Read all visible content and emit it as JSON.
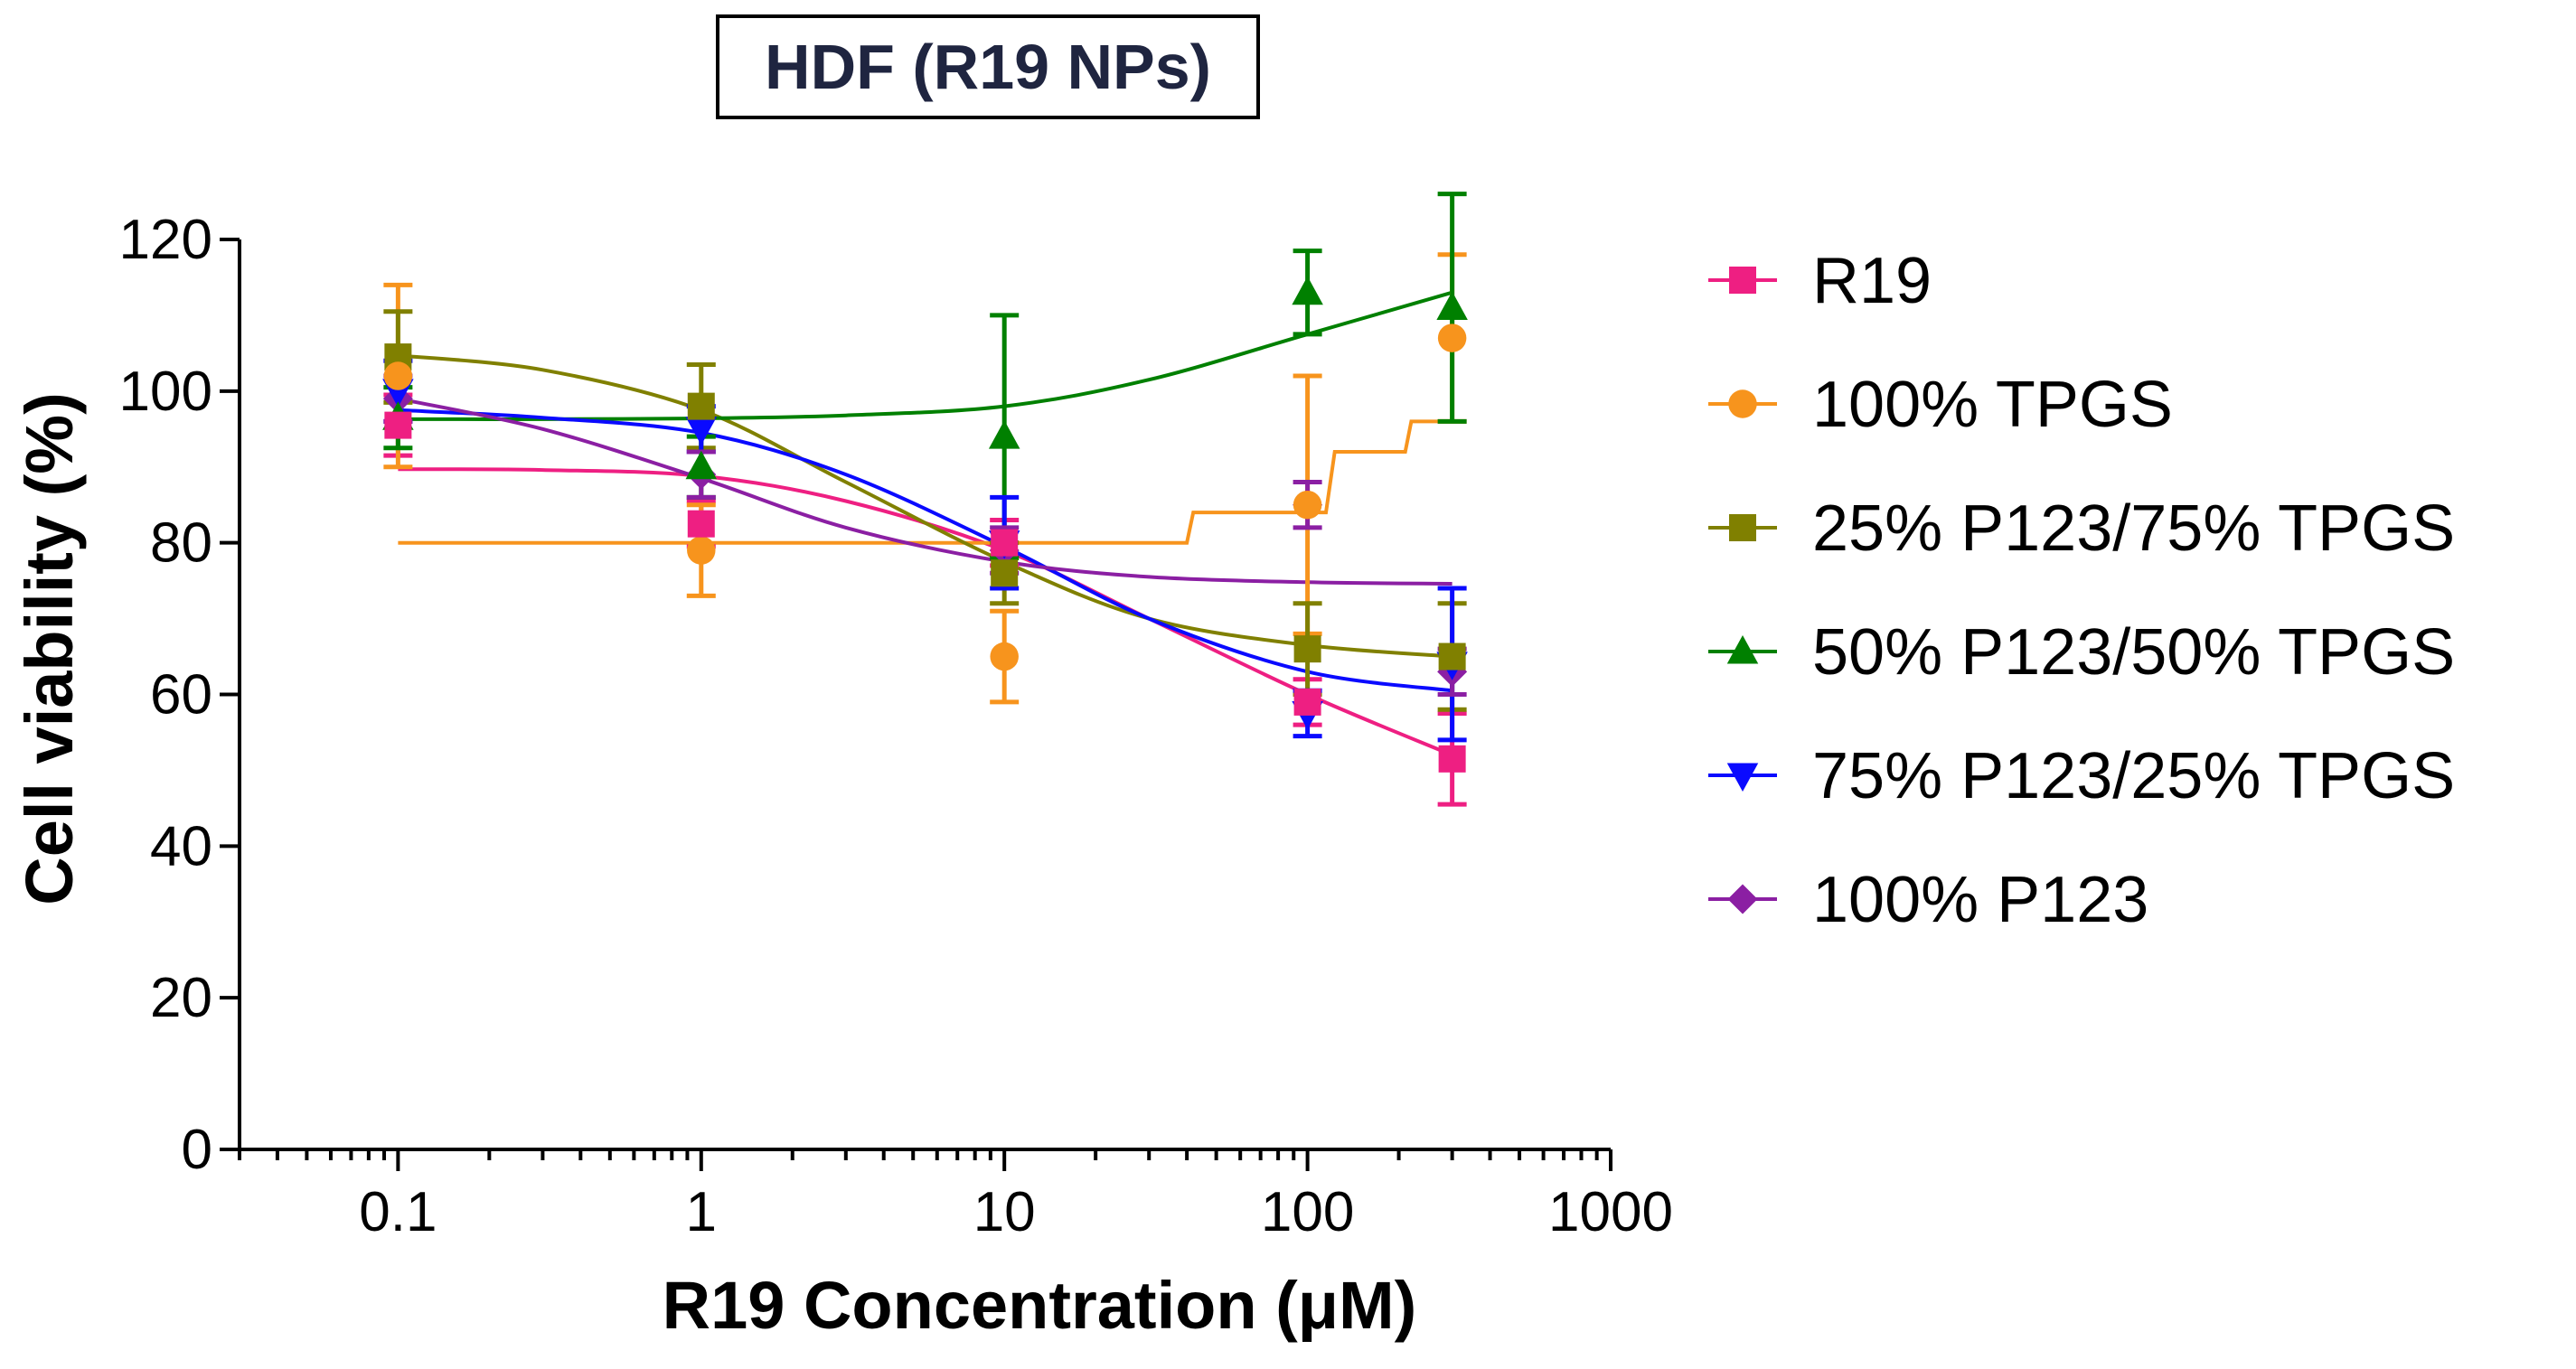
{
  "chart_data": {
    "type": "scatter",
    "title": "HDF (R19 NPs)",
    "xlabel": "R19 Concentration (μM)",
    "ylabel": "Cell viability (%)",
    "x_scale": "log",
    "xlim": [
      0.03,
      1000
    ],
    "ylim": [
      0,
      120
    ],
    "x_ticks": [
      0.1,
      1,
      10,
      100,
      1000
    ],
    "x_tick_labels": [
      "0.1",
      "1",
      "10",
      "100",
      "1000"
    ],
    "y_ticks": [
      0,
      20,
      40,
      60,
      80,
      100,
      120
    ],
    "y_tick_labels": [
      "0",
      "20",
      "40",
      "60",
      "80",
      "100",
      "120"
    ],
    "grid": false,
    "legend_position": "right",
    "x": [
      0.1,
      1,
      10,
      100,
      300
    ],
    "series": [
      {
        "name": "R19",
        "color": "#ee1f82",
        "marker": "square",
        "values": [
          95.5,
          82.5,
          80,
          59,
          51.5
        ],
        "errors": [
          4,
          3,
          3,
          3,
          6
        ],
        "fit": [
          [
            0.1,
            89.7
          ],
          [
            0.3,
            89.6
          ],
          [
            1,
            88.8
          ],
          [
            3,
            85.5
          ],
          [
            10,
            79
          ],
          [
            30,
            70
          ],
          [
            100,
            60
          ],
          [
            300,
            52
          ]
        ]
      },
      {
        "name": "100% TPGS",
        "color": "#f7941d",
        "marker": "circle",
        "values": [
          102,
          79,
          65,
          85,
          107
        ],
        "errors": [
          12,
          6,
          6,
          17,
          11
        ],
        "fit": [
          [
            0.1,
            80
          ],
          [
            40,
            80
          ],
          [
            42,
            84
          ],
          [
            115,
            84
          ],
          [
            123,
            92
          ],
          [
            210,
            92
          ],
          [
            220,
            96
          ],
          [
            300,
            96
          ]
        ],
        "fit_shape": "step"
      },
      {
        "name": "25% P123/75% TPGS",
        "color": "#808000",
        "marker": "square",
        "values": [
          104.5,
          98,
          76,
          66,
          65
        ],
        "errors": [
          6,
          5.5,
          4,
          6,
          7
        ],
        "fit": [
          [
            0.1,
            104.7
          ],
          [
            0.3,
            102.8
          ],
          [
            1,
            97.5
          ],
          [
            3,
            88
          ],
          [
            10,
            77.5
          ],
          [
            30,
            70
          ],
          [
            100,
            66.5
          ],
          [
            300,
            65
          ]
        ]
      },
      {
        "name": "50% P123/50% TPGS",
        "color": "#008000",
        "marker": "triangle-up",
        "values": [
          96.5,
          90,
          94,
          113,
          111
        ],
        "errors": [
          4,
          4,
          16,
          5.5,
          15
        ],
        "fit": [
          [
            0.1,
            96.3
          ],
          [
            0.3,
            96.3
          ],
          [
            1,
            96.4
          ],
          [
            3,
            96.8
          ],
          [
            10,
            98
          ],
          [
            30,
            101.5
          ],
          [
            100,
            107.5
          ],
          [
            300,
            113
          ]
        ]
      },
      {
        "name": "75% P123/25% TPGS",
        "color": "#0a0aff",
        "marker": "triangle-down",
        "values": [
          100,
          95,
          80,
          57.5,
          64
        ],
        "errors": [
          4,
          3,
          6,
          3,
          10
        ],
        "fit": [
          [
            0.1,
            97.5
          ],
          [
            0.3,
            96.5
          ],
          [
            1,
            94.5
          ],
          [
            3,
            89
          ],
          [
            10,
            79.5
          ],
          [
            30,
            70
          ],
          [
            100,
            63
          ],
          [
            300,
            60.5
          ]
        ]
      },
      {
        "name": "100% P123",
        "color": "#8b1fa3",
        "marker": "diamond",
        "values": [
          99,
          89,
          79,
          85,
          63
        ],
        "errors": [
          3,
          3,
          3,
          3,
          3
        ],
        "fit": [
          [
            0.1,
            99
          ],
          [
            0.3,
            95
          ],
          [
            1,
            88.5
          ],
          [
            3,
            82
          ],
          [
            10,
            77.5
          ],
          [
            30,
            75.5
          ],
          [
            100,
            74.8
          ],
          [
            300,
            74.6
          ]
        ]
      }
    ]
  }
}
